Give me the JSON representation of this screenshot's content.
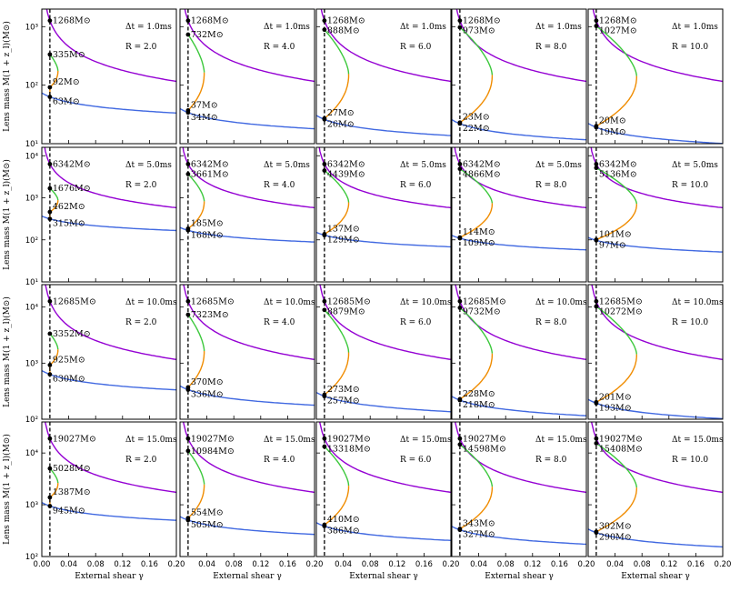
{
  "chart_data": {
    "type": "line",
    "xlabel": "External shear γ",
    "ylabel": "Lens mass M(1 + z_l)(M⊙)",
    "xlim": [
      0.0,
      0.2
    ],
    "x_ticks": [
      "0.00",
      "0.04",
      "0.08",
      "0.12",
      "0.16",
      "0.20"
    ],
    "gamma_marker": 0.012,
    "colors": {
      "purple": "#9400d3",
      "green": "#3cc83c",
      "orange": "#f08c00",
      "blue": "#4169e1",
      "marker": "#000000"
    },
    "rows": [
      {
        "dt_label": "Δt = 1.0ms",
        "ylim_exp": [
          1,
          3.3
        ],
        "ytick_labels": [
          "10¹",
          "10²",
          "10³"
        ],
        "ytick_exps": [
          1,
          2,
          3
        ]
      },
      {
        "dt_label": "Δt = 5.0ms",
        "ylim_exp": [
          1,
          4.2
        ],
        "ytick_labels": [
          "10¹",
          "10²",
          "10³",
          "10⁴"
        ],
        "ytick_exps": [
          1,
          2,
          3,
          4
        ]
      },
      {
        "dt_label": "Δt = 10.0ms",
        "ylim_exp": [
          2,
          4.4
        ],
        "ytick_labels": [
          "10²",
          "10³",
          "10⁴"
        ],
        "ytick_exps": [
          2,
          3,
          4
        ]
      },
      {
        "dt_label": "Δt = 15.0ms",
        "ylim_exp": [
          2,
          4.6
        ],
        "ytick_labels": [
          "10²",
          "10³",
          "10⁴"
        ],
        "ytick_exps": [
          2,
          3,
          4
        ]
      }
    ],
    "cols": [
      {
        "r_label": "R = 2.0",
        "R": 2.0
      },
      {
        "r_label": "R = 4.0",
        "R": 4.0
      },
      {
        "r_label": "R = 6.0",
        "R": 6.0
      },
      {
        "r_label": "R = 8.0",
        "R": 8.0
      },
      {
        "r_label": "R = 10.0",
        "R": 10.0
      }
    ],
    "panels": [
      [
        {
          "top": 1268,
          "top_label": "1268M⊙",
          "mid": 335,
          "mid_label": "335M⊙",
          "upper": 92,
          "upper_label": "92M⊙",
          "lower": 63,
          "lower_label": "63M⊙"
        },
        {
          "top": 1268,
          "top_label": "1268M⊙",
          "mid": 732,
          "mid_label": "732M⊙",
          "upper": 37,
          "upper_label": "37M⊙",
          "lower": 34,
          "lower_label": "34M⊙"
        },
        {
          "top": 1268,
          "top_label": "1268M⊙",
          "mid": 888,
          "mid_label": "888M⊙",
          "upper": 27,
          "upper_label": "27M⊙",
          "lower": 26,
          "lower_label": "26M⊙"
        },
        {
          "top": 1268,
          "top_label": "1268M⊙",
          "mid": 973,
          "mid_label": "973M⊙",
          "upper": 23,
          "upper_label": "23M⊙",
          "lower": 22,
          "lower_label": "22M⊙"
        },
        {
          "top": 1268,
          "top_label": "1268M⊙",
          "mid": 1027,
          "mid_label": "1027M⊙",
          "upper": 20,
          "upper_label": "20M⊙",
          "lower": 19,
          "lower_label": "19M⊙"
        }
      ],
      [
        {
          "top": 6342,
          "top_label": "6342M⊙",
          "mid": 1676,
          "mid_label": "1676M⊙",
          "upper": 462,
          "upper_label": "462M⊙",
          "lower": 315,
          "lower_label": "315M⊙"
        },
        {
          "top": 6342,
          "top_label": "6342M⊙",
          "mid": 3661,
          "mid_label": "3661M⊙",
          "upper": 185,
          "upper_label": "185M⊙",
          "lower": 168,
          "lower_label": "168M⊙"
        },
        {
          "top": 6342,
          "top_label": "6342M⊙",
          "mid": 4439,
          "mid_label": "4439M⊙",
          "upper": 137,
          "upper_label": "137M⊙",
          "lower": 129,
          "lower_label": "129M⊙"
        },
        {
          "top": 6342,
          "top_label": "6342M⊙",
          "mid": 4866,
          "mid_label": "4866M⊙",
          "upper": 114,
          "upper_label": "114M⊙",
          "lower": 109,
          "lower_label": "109M⊙"
        },
        {
          "top": 6342,
          "top_label": "6342M⊙",
          "mid": 5136,
          "mid_label": "5136M⊙",
          "upper": 101,
          "upper_label": "101M⊙",
          "lower": 97,
          "lower_label": "97M⊙"
        }
      ],
      [
        {
          "top": 12685,
          "top_label": "12685M⊙",
          "mid": 3352,
          "mid_label": "3352M⊙",
          "upper": 925,
          "upper_label": "925M⊙",
          "lower": 630,
          "lower_label": "630M⊙"
        },
        {
          "top": 12685,
          "top_label": "12685M⊙",
          "mid": 7323,
          "mid_label": "7323M⊙",
          "upper": 370,
          "upper_label": "370M⊙",
          "lower": 336,
          "lower_label": "336M⊙"
        },
        {
          "top": 12685,
          "top_label": "12685M⊙",
          "mid": 8879,
          "mid_label": "8879M⊙",
          "upper": 273,
          "upper_label": "273M⊙",
          "lower": 257,
          "lower_label": "257M⊙"
        },
        {
          "top": 12685,
          "top_label": "12685M⊙",
          "mid": 9732,
          "mid_label": "9732M⊙",
          "upper": 228,
          "upper_label": "228M⊙",
          "lower": 218,
          "lower_label": "218M⊙"
        },
        {
          "top": 12685,
          "top_label": "12685M⊙",
          "mid": 10272,
          "mid_label": "10272M⊙",
          "upper": 201,
          "upper_label": "201M⊙",
          "lower": 193,
          "lower_label": "193M⊙"
        }
      ],
      [
        {
          "top": 19027,
          "top_label": "19027M⊙",
          "mid": 5028,
          "mid_label": "5028M⊙",
          "upper": 1387,
          "upper_label": "1387M⊙",
          "lower": 945,
          "lower_label": "945M⊙"
        },
        {
          "top": 19027,
          "top_label": "19027M⊙",
          "mid": 10984,
          "mid_label": "10984M⊙",
          "upper": 554,
          "upper_label": "554M⊙",
          "lower": 505,
          "lower_label": "505M⊙"
        },
        {
          "top": 19027,
          "top_label": "19027M⊙",
          "mid": 13318,
          "mid_label": "13318M⊙",
          "upper": 410,
          "upper_label": "410M⊙",
          "lower": 386,
          "lower_label": "386M⊙"
        },
        {
          "top": 19027,
          "top_label": "19027M⊙",
          "mid": 14598,
          "mid_label": "14598M⊙",
          "upper": 343,
          "upper_label": "343M⊙",
          "lower": 327,
          "lower_label": "327M⊙"
        },
        {
          "top": 19027,
          "top_label": "19027M⊙",
          "mid": 15408,
          "mid_label": "15408M⊙",
          "upper": 302,
          "upper_label": "302M⊙",
          "lower": 290,
          "lower_label": "290M⊙"
        }
      ]
    ]
  }
}
